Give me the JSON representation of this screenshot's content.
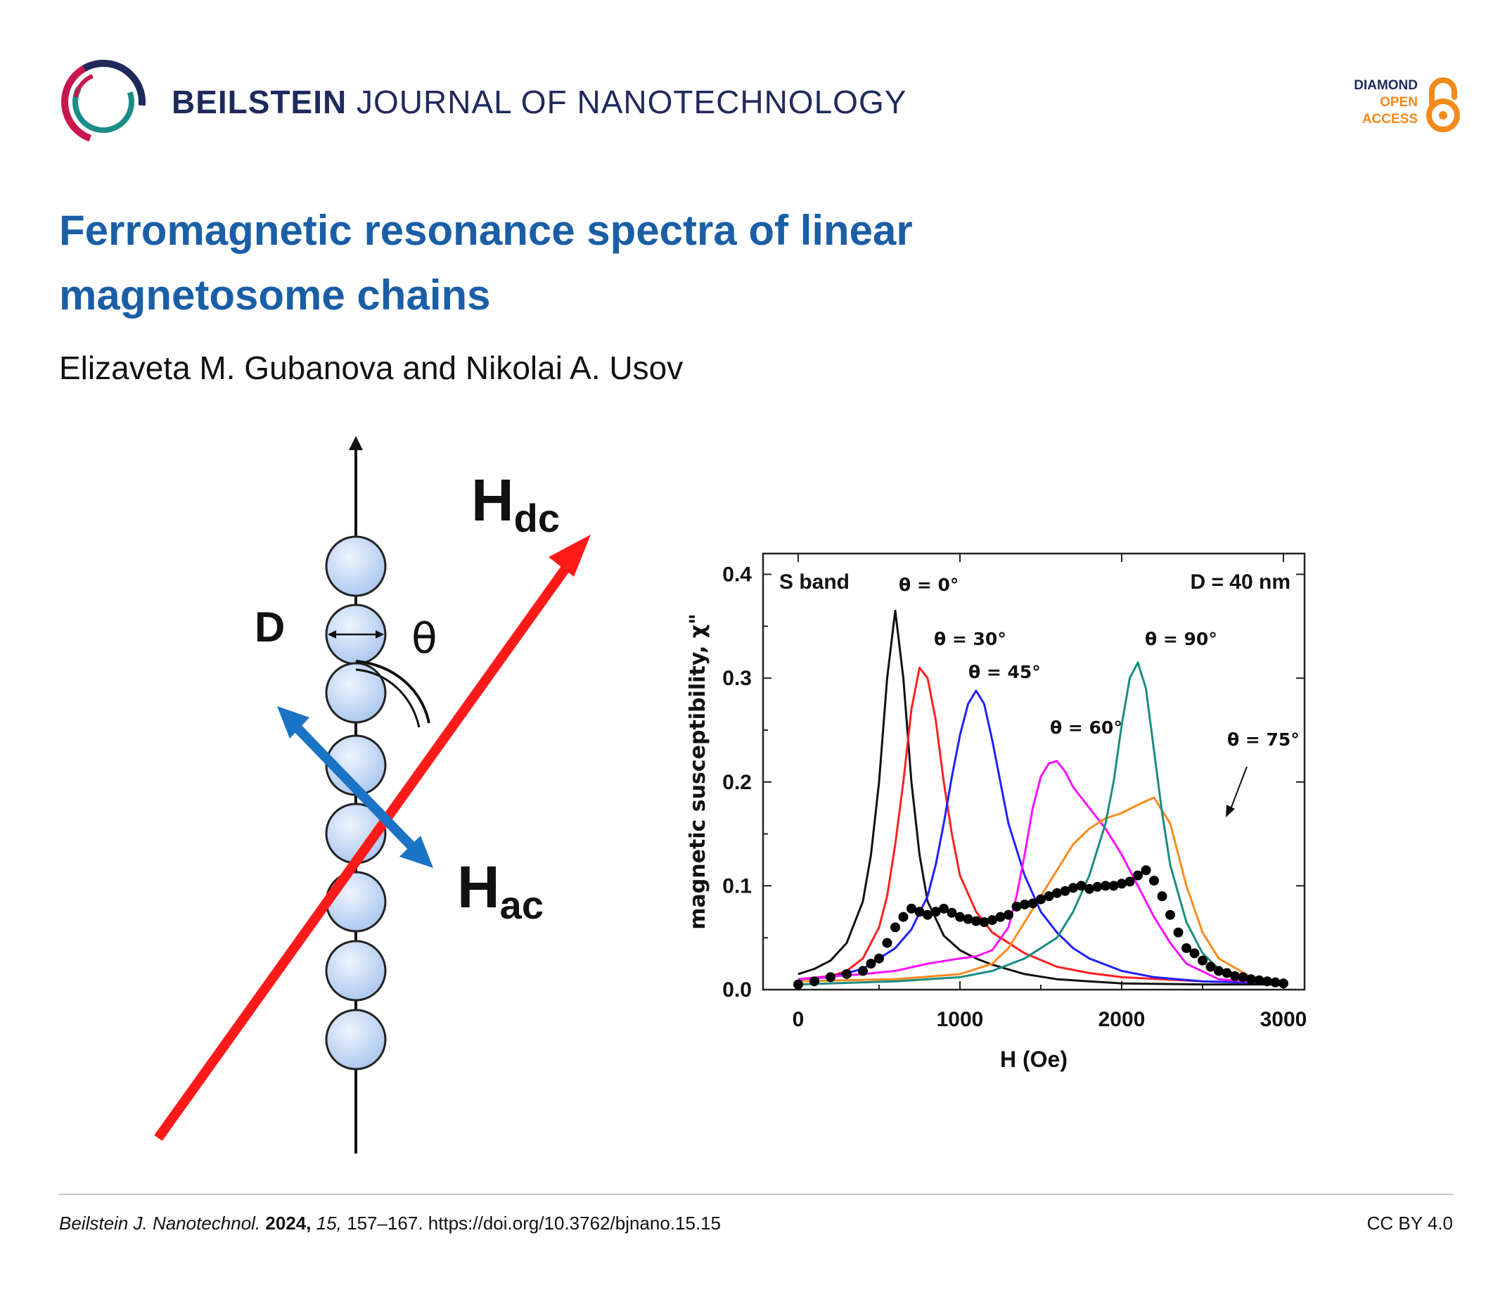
{
  "journal": {
    "name_bold": "BEILSTEIN",
    "name_rest": "JOURNAL OF NANOTECHNOLOGY",
    "oa_line1": "DIAMOND",
    "oa_line2": "OPEN",
    "oa_line3": "ACCESS",
    "colors": {
      "navy": "#1f2a5c",
      "crimson": "#c8174c",
      "teal": "#1b8c86",
      "orange": "#f28a1c",
      "title_blue": "#1a5ea6"
    }
  },
  "article": {
    "title": "Ferromagnetic resonance spectra of linear magnetosome chains",
    "authors": "Elizaveta M. Gubanova and Nikolai A. Usov"
  },
  "diagram": {
    "label_d": "D",
    "label_theta": "θ",
    "label_hdc_main": "H",
    "label_hdc_sub": "dc",
    "label_hac_main": "H",
    "label_hac_sub": "ac",
    "colors": {
      "hdc": "#ff1a1a",
      "hac": "#1a73c4",
      "sphere": "#c9dcf5"
    }
  },
  "chart_data": {
    "type": "line",
    "xlabel": "H (Oe)",
    "ylabel": "magnetic susceptibility, χ\"",
    "xlim": [
      0,
      3000
    ],
    "ylim": [
      0,
      0.42
    ],
    "xticks": [
      0,
      1000,
      2000,
      3000
    ],
    "yticks": [
      0.0,
      0.1,
      0.2,
      0.3,
      0.4
    ],
    "ytick_labels": [
      "0.0",
      "0.1",
      "0.2",
      "0.3",
      "0.4"
    ],
    "annotations": {
      "band": "S band",
      "diameter": "D = 40 nm"
    },
    "series": [
      {
        "name": "θ = 0°",
        "color": "#111111",
        "x": [
          0,
          100,
          200,
          300,
          400,
          450,
          500,
          550,
          600,
          650,
          700,
          750,
          800,
          900,
          1000,
          1100,
          1200,
          1400,
          1600,
          1800,
          2000,
          2500,
          3000
        ],
        "y": [
          0.015,
          0.02,
          0.028,
          0.045,
          0.085,
          0.13,
          0.2,
          0.3,
          0.365,
          0.3,
          0.2,
          0.13,
          0.085,
          0.052,
          0.038,
          0.03,
          0.024,
          0.015,
          0.01,
          0.008,
          0.006,
          0.005,
          0.005
        ]
      },
      {
        "name": "θ = 30°",
        "color": "#ff2020",
        "x": [
          0,
          200,
          300,
          400,
          500,
          550,
          600,
          650,
          700,
          750,
          800,
          850,
          900,
          950,
          1000,
          1100,
          1200,
          1400,
          1600,
          1800,
          2000,
          2500,
          3000
        ],
        "y": [
          0.01,
          0.013,
          0.018,
          0.03,
          0.06,
          0.09,
          0.14,
          0.2,
          0.27,
          0.31,
          0.3,
          0.26,
          0.2,
          0.15,
          0.11,
          0.075,
          0.055,
          0.035,
          0.022,
          0.016,
          0.012,
          0.008,
          0.006
        ]
      },
      {
        "name": "θ = 45°",
        "color": "#2020ff",
        "x": [
          0,
          200,
          400,
          600,
          700,
          800,
          850,
          900,
          950,
          1000,
          1050,
          1100,
          1150,
          1200,
          1250,
          1300,
          1400,
          1500,
          1600,
          1700,
          1800,
          2000,
          2200,
          2500,
          3000
        ],
        "y": [
          0.01,
          0.012,
          0.02,
          0.04,
          0.058,
          0.09,
          0.12,
          0.16,
          0.205,
          0.245,
          0.275,
          0.288,
          0.275,
          0.24,
          0.2,
          0.16,
          0.11,
          0.075,
          0.055,
          0.04,
          0.03,
          0.018,
          0.012,
          0.008,
          0.006
        ]
      },
      {
        "name": "θ = 60°",
        "color": "#ff10ff",
        "x": [
          0,
          400,
          600,
          800,
          1000,
          1100,
          1200,
          1300,
          1350,
          1400,
          1450,
          1500,
          1550,
          1600,
          1650,
          1700,
          1800,
          1900,
          2000,
          2100,
          2200,
          2300,
          2400,
          2600,
          3000
        ],
        "y": [
          0.01,
          0.015,
          0.018,
          0.025,
          0.03,
          0.032,
          0.038,
          0.06,
          0.09,
          0.13,
          0.175,
          0.205,
          0.218,
          0.22,
          0.21,
          0.195,
          0.175,
          0.155,
          0.13,
          0.1,
          0.07,
          0.045,
          0.025,
          0.01,
          0.005
        ]
      },
      {
        "name": "θ = 75°",
        "color": "#ff8a1c",
        "x": [
          0,
          600,
          1000,
          1200,
          1300,
          1400,
          1500,
          1600,
          1700,
          1800,
          1900,
          2000,
          2100,
          2200,
          2300,
          2400,
          2500,
          2600,
          2800,
          3000
        ],
        "y": [
          0.008,
          0.01,
          0.015,
          0.025,
          0.04,
          0.065,
          0.09,
          0.115,
          0.14,
          0.155,
          0.165,
          0.17,
          0.178,
          0.185,
          0.16,
          0.1,
          0.055,
          0.03,
          0.012,
          0.008
        ]
      },
      {
        "name": "θ = 90°",
        "color": "#1b8c80",
        "x": [
          0,
          600,
          1000,
          1200,
          1400,
          1600,
          1700,
          1800,
          1900,
          1950,
          2000,
          2050,
          2100,
          2150,
          2200,
          2250,
          2300,
          2400,
          2500,
          2600,
          2800,
          3000
        ],
        "y": [
          0.005,
          0.008,
          0.012,
          0.018,
          0.03,
          0.05,
          0.075,
          0.11,
          0.16,
          0.2,
          0.255,
          0.3,
          0.315,
          0.29,
          0.23,
          0.17,
          0.12,
          0.065,
          0.035,
          0.02,
          0.01,
          0.006
        ]
      },
      {
        "name": "",
        "style": "dots",
        "color": "#000000",
        "x": [
          0,
          100,
          200,
          300,
          400,
          450,
          500,
          550,
          600,
          650,
          700,
          750,
          800,
          850,
          900,
          950,
          1000,
          1050,
          1100,
          1150,
          1200,
          1250,
          1300,
          1350,
          1400,
          1450,
          1500,
          1550,
          1600,
          1650,
          1700,
          1750,
          1800,
          1850,
          1900,
          1950,
          2000,
          2050,
          2100,
          2150,
          2200,
          2250,
          2300,
          2350,
          2400,
          2450,
          2500,
          2550,
          2600,
          2650,
          2700,
          2750,
          2800,
          2850,
          2900,
          2950,
          3000
        ],
        "y": [
          0.005,
          0.008,
          0.012,
          0.015,
          0.018,
          0.025,
          0.03,
          0.045,
          0.06,
          0.07,
          0.078,
          0.075,
          0.072,
          0.075,
          0.078,
          0.074,
          0.07,
          0.068,
          0.066,
          0.065,
          0.067,
          0.07,
          0.072,
          0.08,
          0.082,
          0.083,
          0.087,
          0.09,
          0.093,
          0.095,
          0.098,
          0.1,
          0.097,
          0.099,
          0.1,
          0.1,
          0.102,
          0.104,
          0.11,
          0.115,
          0.105,
          0.09,
          0.072,
          0.055,
          0.04,
          0.035,
          0.028,
          0.022,
          0.018,
          0.016,
          0.013,
          0.012,
          0.01,
          0.009,
          0.008,
          0.007,
          0.006
        ]
      }
    ],
    "labels": [
      "θ = 0°",
      "θ = 30°",
      "θ = 45°",
      "θ = 60°",
      "θ = 90°",
      "θ = 75°"
    ]
  },
  "footer": {
    "journal_abbr": "Beilstein J. Nanotechnol.",
    "year": "2024,",
    "volume": "15,",
    "pages_doi": "157–167. https://doi.org/10.3762/bjnano.15.15",
    "license": "CC BY 4.0"
  }
}
